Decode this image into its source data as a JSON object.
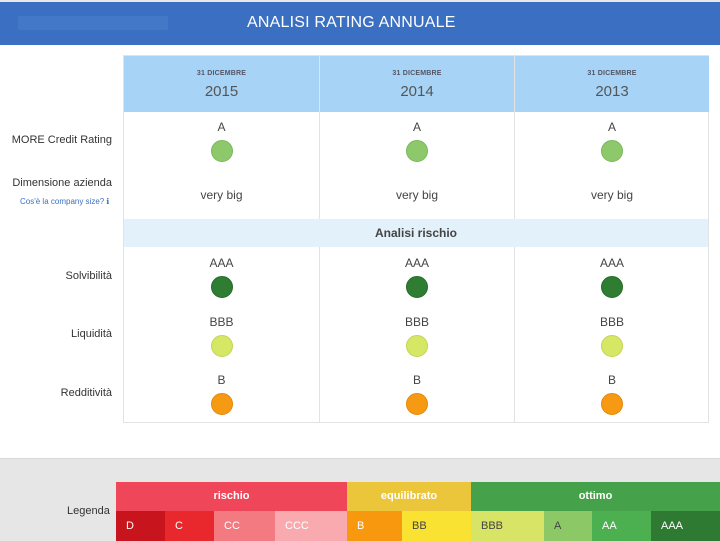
{
  "header": {
    "title": "ANALISI RATING ANNUALE"
  },
  "rows": {
    "credit_rating_label": "MORE Credit Rating",
    "company_size_label": "Dimensione azienda",
    "company_size_link": "Cos'è la company size?",
    "solvency_label": "Solvibilità",
    "liquidity_label": "Liquidità",
    "profitability_label": "Redditività"
  },
  "section": {
    "title": "Analisi rischio"
  },
  "years": [
    {
      "date_label": "31 DICEMBRE",
      "year": "2015",
      "credit_rating": "A",
      "company_size": "very big",
      "solvency": "AAA",
      "liquidity": "BBB",
      "profitability": "B"
    },
    {
      "date_label": "31 DICEMBRE",
      "year": "2014",
      "credit_rating": "A",
      "company_size": "very big",
      "solvency": "AAA",
      "liquidity": "BBB",
      "profitability": "B"
    },
    {
      "date_label": "31 DICEMBRE",
      "year": "2013",
      "credit_rating": "A",
      "company_size": "very big",
      "solvency": "AAA",
      "liquidity": "BBB",
      "profitability": "B"
    }
  ],
  "legend": {
    "title": "Legenda",
    "groups": [
      {
        "label": "rischio",
        "color": "#f0465a"
      },
      {
        "label": "equilibrato",
        "color": "#ecc63a"
      },
      {
        "label": "ottimo",
        "color": "#45a24a"
      }
    ],
    "items": [
      {
        "label": "D",
        "color": "#c8141c",
        "text_color": "#ffffff"
      },
      {
        "label": "C",
        "color": "#e8282c",
        "text_color": "#ffffff"
      },
      {
        "label": "CC",
        "color": "#f47a82",
        "text_color": "#ffffff"
      },
      {
        "label": "CCC",
        "color": "#f8aaae",
        "text_color": "#ffffff"
      },
      {
        "label": "B",
        "color": "#f7980e",
        "text_color": "#ffffff"
      },
      {
        "label": "BB",
        "color": "#fae233",
        "text_color": "#444444"
      },
      {
        "label": "BBB",
        "color": "#d7e466",
        "text_color": "#444444"
      },
      {
        "label": "A",
        "color": "#8dc866",
        "text_color": "#444444"
      },
      {
        "label": "AA",
        "color": "#4caf50",
        "text_color": "#ffffff"
      },
      {
        "label": "AAA",
        "color": "#2f7a32",
        "text_color": "#ffffff"
      }
    ]
  }
}
